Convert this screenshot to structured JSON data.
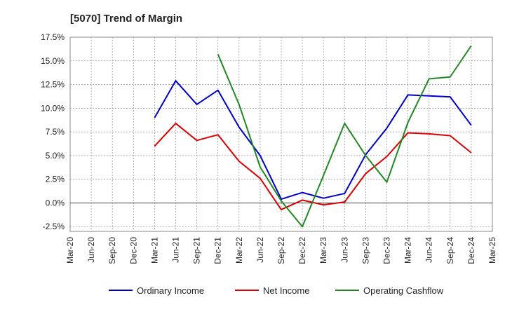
{
  "chart_data": {
    "type": "line",
    "title": "[5070]  Trend of Margin",
    "xlabel": "",
    "ylabel": "",
    "categories": [
      "Mar-20",
      "Jun-20",
      "Sep-20",
      "Dec-20",
      "Mar-21",
      "Jun-21",
      "Sep-21",
      "Dec-21",
      "Mar-22",
      "Jun-22",
      "Sep-22",
      "Dec-22",
      "Mar-23",
      "Jun-23",
      "Sep-23",
      "Dec-23",
      "Mar-24",
      "Jun-24",
      "Sep-24",
      "Dec-24",
      "Mar-25"
    ],
    "ylim": [
      -3.0,
      17.5
    ],
    "y_ticks": [
      -2.5,
      0.0,
      2.5,
      5.0,
      7.5,
      10.0,
      12.5,
      15.0,
      17.5
    ],
    "y_tick_labels": [
      "-2.5%",
      "0.0%",
      "2.5%",
      "5.0%",
      "7.5%",
      "10.0%",
      "12.5%",
      "15.0%",
      "17.5%"
    ],
    "grid": true,
    "legend_position": "bottom",
    "series": [
      {
        "name": "Ordinary Income",
        "color": "#0000cc",
        "values": [
          null,
          null,
          null,
          null,
          9.0,
          12.9,
          10.4,
          11.9,
          8.0,
          5.0,
          0.4,
          1.1,
          0.5,
          1.0,
          5.1,
          7.9,
          11.4,
          11.3,
          11.2,
          8.2,
          null
        ]
      },
      {
        "name": "Net Income",
        "color": "#dd0000",
        "values": [
          null,
          null,
          null,
          null,
          6.0,
          8.4,
          6.6,
          7.2,
          4.4,
          2.6,
          -0.7,
          0.3,
          -0.2,
          0.1,
          3.1,
          4.9,
          7.4,
          7.3,
          7.1,
          5.3,
          null
        ]
      },
      {
        "name": "Operating Cashflow",
        "color": "#228822",
        "values": [
          null,
          null,
          null,
          null,
          null,
          null,
          null,
          15.7,
          10.4,
          3.8,
          0.2,
          -2.5,
          2.9,
          8.4,
          5.0,
          2.2,
          8.5,
          13.1,
          13.3,
          16.6,
          null
        ]
      }
    ]
  }
}
